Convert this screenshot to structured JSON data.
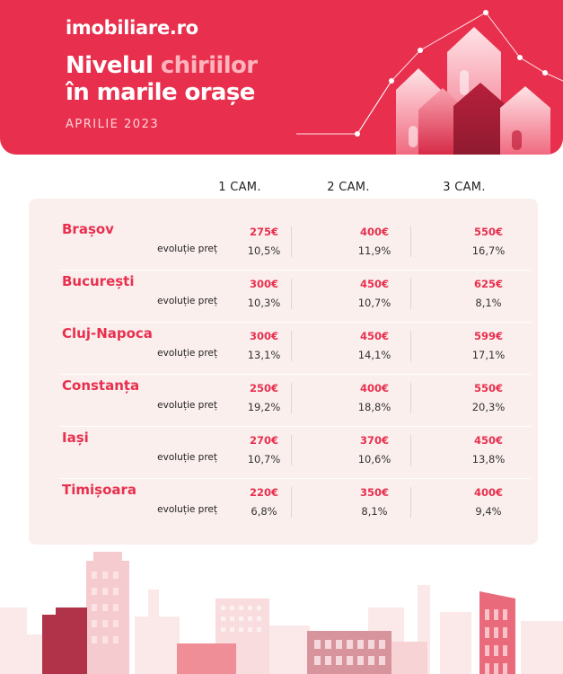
{
  "header": {
    "logo": "imobiliare.ro",
    "title_part1": "Nivelul ",
    "title_highlight": "chiriilor",
    "title_part2": "în marile orașe",
    "date": "APRILIE 2023"
  },
  "columns": [
    "1 CAM.",
    "2 CAM.",
    "3 CAM."
  ],
  "evolution_label": "evoluție preț",
  "rows": [
    {
      "city": "Brașov",
      "prices": [
        "275€",
        "400€",
        "550€"
      ],
      "changes": [
        "10,5%",
        "11,9%",
        "16,7%"
      ]
    },
    {
      "city": "București",
      "prices": [
        "300€",
        "450€",
        "625€"
      ],
      "changes": [
        "10,3%",
        "10,7%",
        "8,1%"
      ]
    },
    {
      "city": "Cluj-Napoca",
      "prices": [
        "300€",
        "450€",
        "599€"
      ],
      "changes": [
        "13,1%",
        "14,1%",
        "17,1%"
      ]
    },
    {
      "city": "Constanța",
      "prices": [
        "250€",
        "400€",
        "550€"
      ],
      "changes": [
        "19,2%",
        "18,8%",
        "20,3%"
      ]
    },
    {
      "city": "Iași",
      "prices": [
        "270€",
        "370€",
        "450€"
      ],
      "changes": [
        "10,7%",
        "10,6%",
        "13,8%"
      ]
    },
    {
      "city": "Timișoara",
      "prices": [
        "220€",
        "350€",
        "400€"
      ],
      "changes": [
        "6,8%",
        "8,1%",
        "9,4%"
      ]
    }
  ],
  "colors": {
    "brand": "#e8304e",
    "panel": "#fbefee",
    "highlight": "#ffb3bd"
  }
}
